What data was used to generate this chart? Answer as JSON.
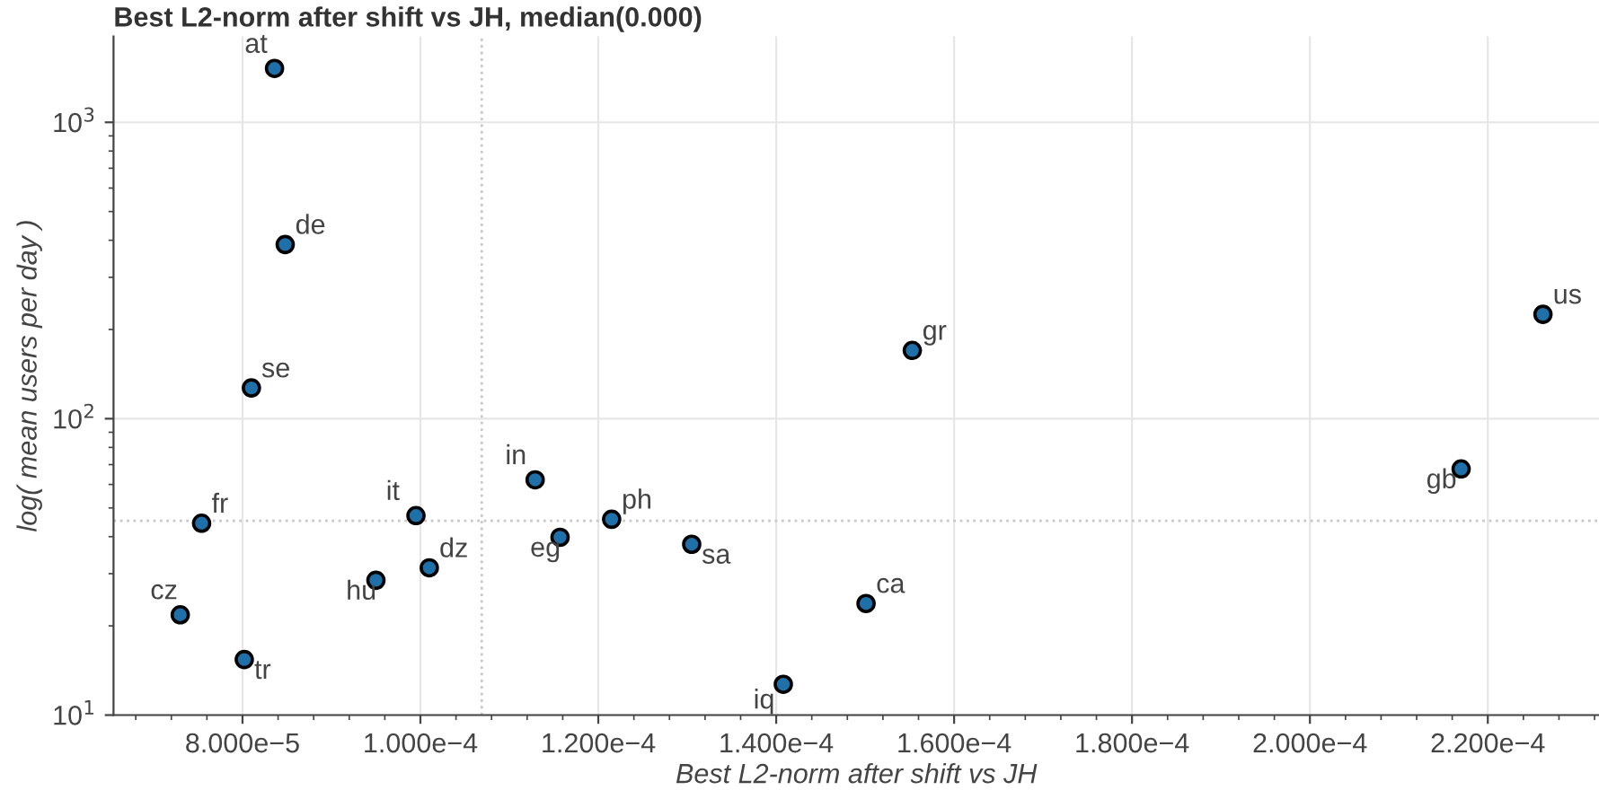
{
  "chart_data": {
    "type": "scatter",
    "title": "Best L2-norm after shift vs JH, median(0.000)",
    "xlabel": "Best L2-norm after shift vs JH",
    "ylabel": "log( mean users per day )",
    "x": [
      8.36e-05,
      8.48e-05,
      8.1e-05,
      7.54e-05,
      7.3e-05,
      8.02e-05,
      9.5e-05,
      9.95e-05,
      0.000101,
      0.0001129,
      0.0001157,
      0.0001215,
      0.0001305,
      0.0001408,
      0.0001501,
      0.0001553,
      0.000217,
      0.0002262
    ],
    "series": [
      {
        "color": "#1f6fa8",
        "values": [
          1520,
          387,
          127,
          44.4,
          21.8,
          15.4,
          28.5,
          47.1,
          31.4,
          62.2,
          39.8,
          45.8,
          37.7,
          12.7,
          23.8,
          170,
          67.7,
          225
        ]
      }
    ],
    "annotations": [
      {
        "text": "at",
        "x": 8.36e-05,
        "y": 1520
      },
      {
        "text": "de",
        "x": 8.48e-05,
        "y": 387
      },
      {
        "text": "se",
        "x": 8.1e-05,
        "y": 127
      },
      {
        "text": "fr",
        "x": 7.54e-05,
        "y": 44.4
      },
      {
        "text": "cz",
        "x": 7.3e-05,
        "y": 21.8
      },
      {
        "text": "tr",
        "x": 8.02e-05,
        "y": 15.4
      },
      {
        "text": "hu",
        "x": 9.5e-05,
        "y": 28.5
      },
      {
        "text": "it",
        "x": 9.95e-05,
        "y": 47.1
      },
      {
        "text": "dz",
        "x": 0.000101,
        "y": 31.4
      },
      {
        "text": "in",
        "x": 0.0001129,
        "y": 62.2
      },
      {
        "text": "eg",
        "x": 0.0001157,
        "y": 39.8
      },
      {
        "text": "ph",
        "x": 0.0001215,
        "y": 45.8
      },
      {
        "text": "sa",
        "x": 0.0001305,
        "y": 37.7
      },
      {
        "text": "iq",
        "x": 0.0001408,
        "y": 12.7
      },
      {
        "text": "ca",
        "x": 0.0001501,
        "y": 23.8
      },
      {
        "text": "gr",
        "x": 0.0001553,
        "y": 170
      },
      {
        "text": "gb",
        "x": 0.000217,
        "y": 67.7
      },
      {
        "text": "us",
        "x": 0.0002262,
        "y": 225
      }
    ],
    "ref_lines": [
      {
        "axis": "x",
        "value": 0.0001069,
        "label": null,
        "color": "#c8c8c8",
        "line_style": "dotted"
      },
      {
        "axis": "y",
        "value": 45.2,
        "label": null,
        "color": "#c8c8c8",
        "line_style": "dotted"
      }
    ],
    "log": "y",
    "xlim": [
      6.55e-05,
      0.0002325
    ],
    "ylim": [
      10,
      1950
    ],
    "xticks": [
      {
        "value": 8e-05,
        "label": "8.000e−5"
      },
      {
        "value": 0.0001,
        "label": "1.000e−4"
      },
      {
        "value": 0.00012,
        "label": "1.200e−4"
      },
      {
        "value": 0.00014,
        "label": "1.400e−4"
      },
      {
        "value": 0.00016,
        "label": "1.600e−4"
      },
      {
        "value": 0.00018,
        "label": "1.800e−4"
      },
      {
        "value": 0.0002,
        "label": "2.000e−4"
      },
      {
        "value": 0.00022,
        "label": "2.200e−4"
      }
    ],
    "yticks": [
      {
        "value": 10,
        "label": "10$^{1}$"
      },
      {
        "value": 100,
        "label": "10$^{2}$"
      },
      {
        "value": 1000,
        "label": "10$^{3}$"
      }
    ],
    "grid": true,
    "marker": "circle",
    "legend": false
  }
}
